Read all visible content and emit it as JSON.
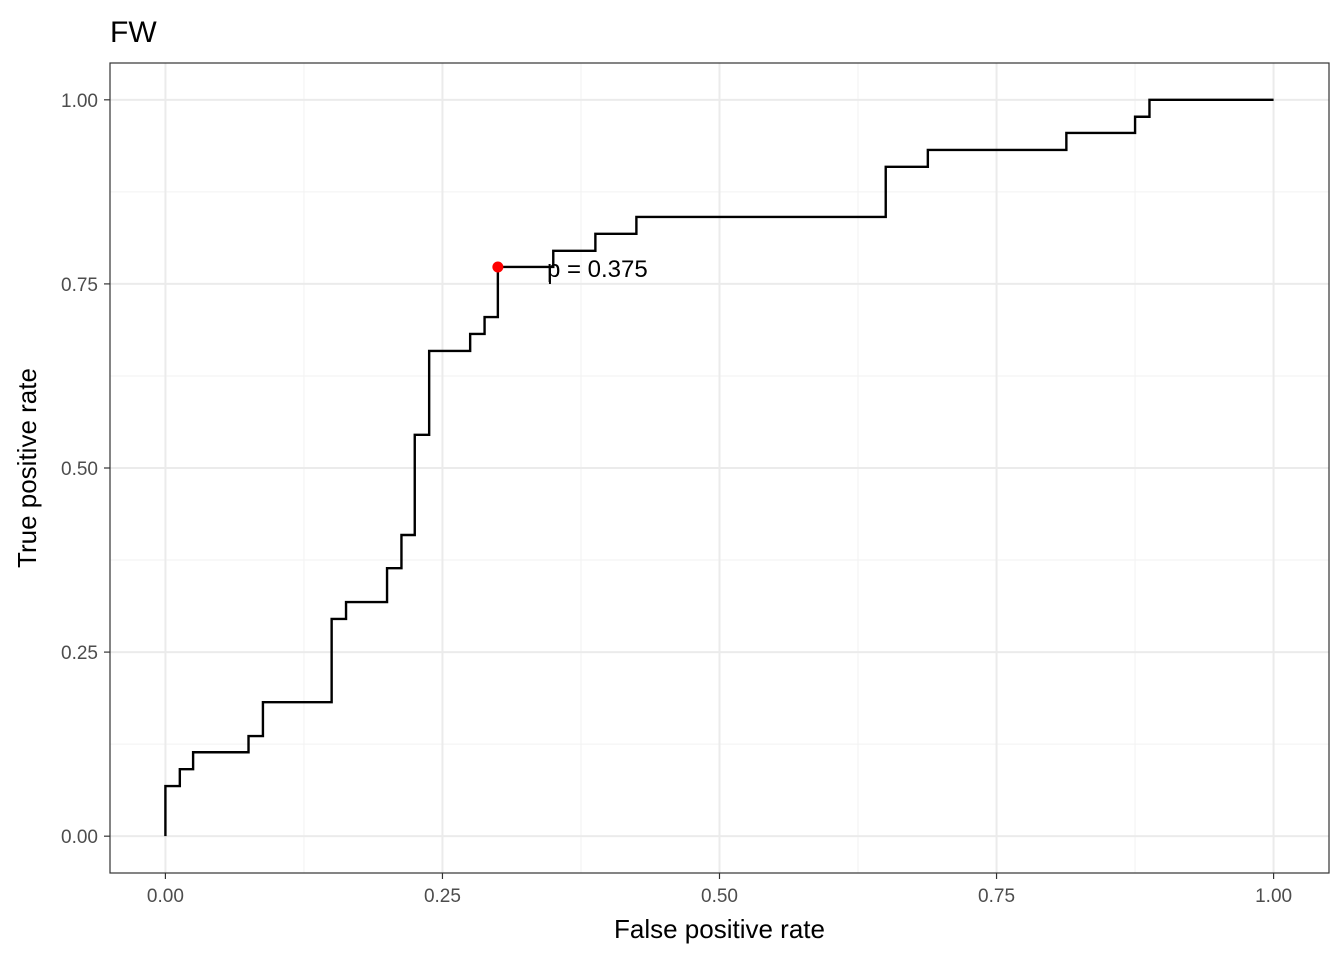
{
  "chart_data": {
    "type": "line",
    "title": "FW",
    "xlabel": "False positive rate",
    "ylabel": "True positive rate",
    "xlim": [
      -0.05,
      1.05
    ],
    "ylim": [
      -0.05,
      1.05
    ],
    "grid": true,
    "x_ticks": [
      0,
      0.25,
      0.5,
      0.75,
      1
    ],
    "x_tick_labels": [
      "0.00",
      "0.25",
      "0.50",
      "0.75",
      "1.00"
    ],
    "y_ticks": [
      0,
      0.25,
      0.5,
      0.75,
      1
    ],
    "y_tick_labels": [
      "0.00",
      "0.25",
      "0.50",
      "0.75",
      "1.00"
    ],
    "minor_ticks": [
      0.125,
      0.375,
      0.625,
      0.875
    ],
    "series": [
      {
        "color": "#000000",
        "step": true,
        "points": [
          [
            0.0,
            0.0
          ],
          [
            0.0,
            0.068
          ],
          [
            0.013,
            0.068
          ],
          [
            0.013,
            0.091
          ],
          [
            0.025,
            0.091
          ],
          [
            0.025,
            0.114
          ],
          [
            0.075,
            0.114
          ],
          [
            0.075,
            0.136
          ],
          [
            0.088,
            0.136
          ],
          [
            0.088,
            0.182
          ],
          [
            0.15,
            0.182
          ],
          [
            0.15,
            0.295
          ],
          [
            0.163,
            0.295
          ],
          [
            0.163,
            0.318
          ],
          [
            0.2,
            0.318
          ],
          [
            0.2,
            0.364
          ],
          [
            0.213,
            0.364
          ],
          [
            0.213,
            0.409
          ],
          [
            0.225,
            0.409
          ],
          [
            0.225,
            0.545
          ],
          [
            0.238,
            0.545
          ],
          [
            0.238,
            0.659
          ],
          [
            0.275,
            0.659
          ],
          [
            0.275,
            0.682
          ],
          [
            0.288,
            0.682
          ],
          [
            0.288,
            0.705
          ],
          [
            0.3,
            0.705
          ],
          [
            0.3,
            0.773
          ],
          [
            0.35,
            0.773
          ],
          [
            0.35,
            0.795
          ],
          [
            0.388,
            0.795
          ],
          [
            0.388,
            0.818
          ],
          [
            0.425,
            0.818
          ],
          [
            0.425,
            0.841
          ],
          [
            0.65,
            0.841
          ],
          [
            0.65,
            0.909
          ],
          [
            0.688,
            0.909
          ],
          [
            0.688,
            0.932
          ],
          [
            0.813,
            0.932
          ],
          [
            0.813,
            0.955
          ],
          [
            0.875,
            0.955
          ],
          [
            0.875,
            0.977
          ],
          [
            0.888,
            0.977
          ],
          [
            0.888,
            1.0
          ],
          [
            1.0,
            1.0
          ]
        ]
      }
    ],
    "highlight_point": {
      "x": 0.3,
      "y": 0.773,
      "color": "#ff0000"
    },
    "annotation": {
      "text": "p = 0.375",
      "x": 0.347,
      "y": 0.773
    }
  }
}
